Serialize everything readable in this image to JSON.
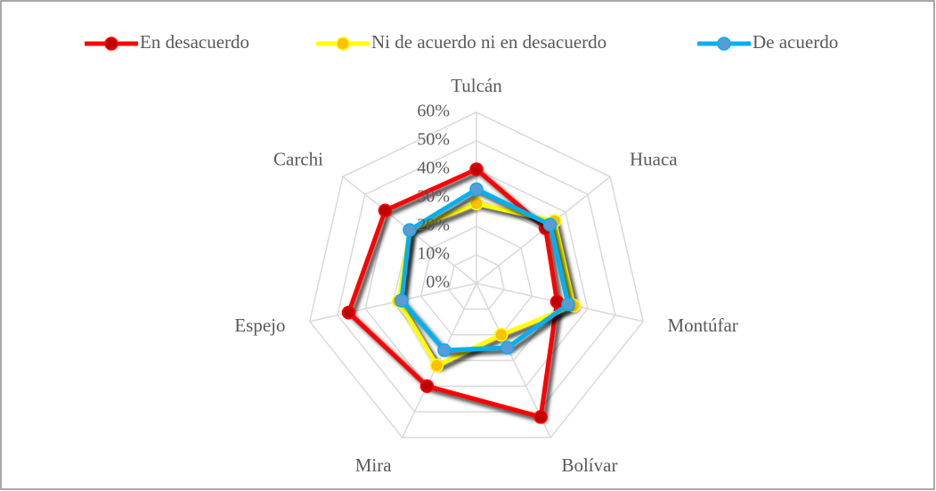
{
  "chart_data": {
    "type": "radar",
    "categories": [
      "Tulcán",
      "Huaca",
      "Montúfar",
      "Bolívar",
      "Mira",
      "Espejo",
      "Carchi"
    ],
    "series": [
      {
        "name": "En desacuerdo",
        "color": "#ff0000",
        "marker_color": "#c00000",
        "values": [
          40,
          31,
          29,
          52,
          40,
          46,
          41
        ]
      },
      {
        "name": "Ni de acuerdo ni en desacuerdo",
        "color": "#ffff00",
        "marker_color": "#ffc000",
        "values": [
          28,
          35,
          35,
          20,
          32,
          28,
          30
        ]
      },
      {
        "name": "De acuerdo",
        "color": "#00b0f0",
        "marker_color": "#5b9bd5",
        "values": [
          33,
          33,
          33,
          25,
          26,
          27,
          30
        ]
      }
    ],
    "ylim": [
      0,
      60
    ],
    "yticks": [
      {
        "value": 0,
        "label": "0%"
      },
      {
        "value": 10,
        "label": "10%"
      },
      {
        "value": 20,
        "label": "20%"
      },
      {
        "value": 30,
        "label": "30%"
      },
      {
        "value": 40,
        "label": "40%"
      },
      {
        "value": 50,
        "label": "50%"
      },
      {
        "value": 60,
        "label": "60%"
      }
    ],
    "grid": true,
    "legend": "top"
  }
}
